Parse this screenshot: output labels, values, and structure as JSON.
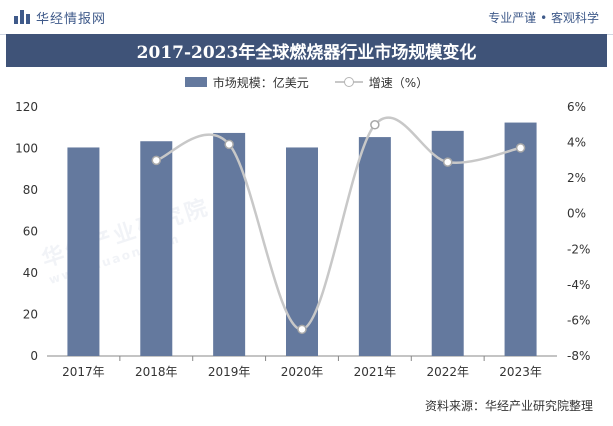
{
  "header": {
    "brand": "华经情报网",
    "tagline": "专业严谨 • 客观科学"
  },
  "colors": {
    "bar": "#64799e",
    "line": "#c8c8c8",
    "title_bg": "#3f5378"
  },
  "legend": {
    "bar_label": "市场规模：亿美元",
    "line_label": "增速（%）"
  },
  "source": "资料来源：华经产业研究院整理",
  "watermark": {
    "text": "华经产业研究院",
    "url": "www.huaon.com"
  },
  "chart_data": {
    "type": "bar",
    "title": "2017-2023年全球燃烧器行业市场规模变化",
    "categories": [
      "2017年",
      "2018年",
      "2019年",
      "2020年",
      "2021年",
      "2022年",
      "2023年"
    ],
    "series": [
      {
        "name": "市场规模：亿美元",
        "type": "bar",
        "axis": "left",
        "values": [
          100.5,
          103.5,
          107.5,
          100.5,
          105.5,
          108.5,
          112.5
        ]
      },
      {
        "name": "增速（%）",
        "type": "line",
        "axis": "right",
        "smooth": true,
        "values": [
          null,
          3.0,
          3.9,
          -6.5,
          5.0,
          2.9,
          3.7
        ]
      }
    ],
    "left_axis": {
      "ylim": [
        0,
        120
      ],
      "ticks": [
        0,
        20,
        40,
        60,
        80,
        100,
        120
      ]
    },
    "right_axis": {
      "ylim": [
        -8,
        6
      ],
      "ticks": [
        "-8%",
        "-6%",
        "-4%",
        "-2%",
        "0%",
        "2%",
        "4%",
        "6%"
      ],
      "tick_values": [
        -8,
        -6,
        -4,
        -2,
        0,
        2,
        4,
        6
      ]
    },
    "grid": false,
    "legend_position": "top-center"
  }
}
